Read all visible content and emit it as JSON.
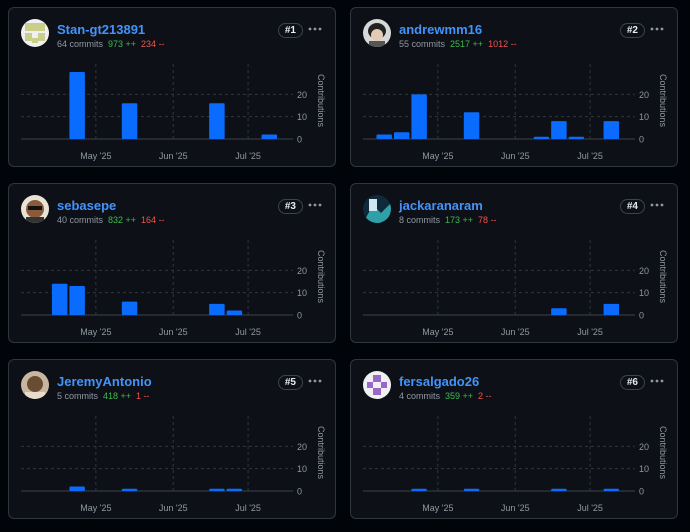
{
  "common": {
    "axis_label": "Contributions",
    "month_labels": [
      "May '25",
      "Jun '25",
      "Jul '25"
    ],
    "y_ticks": [
      "20",
      "10",
      "0"
    ],
    "plus_suffix": "++",
    "minus_suffix": "--"
  },
  "colors": {
    "bar": "#0a6cff",
    "link": "#4493f8",
    "additions": "#3fb950",
    "deletions": "#f85149"
  },
  "contributors": [
    {
      "username": "Stan-gt213891",
      "commits": "64 commits",
      "additions": "973",
      "deletions": "234",
      "rank": "#1",
      "avatar_icon": "identicon-yellow-green",
      "chart_data": {
        "type": "bar",
        "ylim": [
          0,
          30
        ],
        "ylabel": "Contributions",
        "x": [
          "2025-04-20",
          "2025-05-11",
          "2025-06-15",
          "2025-07-06"
        ],
        "values": [
          30,
          16,
          16,
          2
        ]
      }
    },
    {
      "username": "andrewmm16",
      "commits": "55 commits",
      "additions": "2517",
      "deletions": "1012",
      "rank": "#2",
      "avatar_icon": "photo-avatar-dark-hair",
      "chart_data": {
        "type": "bar",
        "ylim": [
          0,
          30
        ],
        "ylabel": "Contributions",
        "x": [
          "2025-04-06",
          "2025-04-13",
          "2025-04-20",
          "2025-05-11",
          "2025-06-08",
          "2025-06-15",
          "2025-06-22",
          "2025-07-06"
        ],
        "values": [
          2,
          3,
          20,
          12,
          1,
          8,
          1,
          8
        ]
      }
    },
    {
      "username": "sebasepe",
      "commits": "40 commits",
      "additions": "832",
      "deletions": "164",
      "rank": "#3",
      "avatar_icon": "photo-avatar-sunglasses",
      "chart_data": {
        "type": "bar",
        "ylim": [
          0,
          30
        ],
        "ylabel": "Contributions",
        "x": [
          "2025-04-13",
          "2025-04-20",
          "2025-05-11",
          "2025-06-15",
          "2025-06-22"
        ],
        "values": [
          14,
          13,
          6,
          5,
          2
        ]
      }
    },
    {
      "username": "jackaranaram",
      "commits": "8 commits",
      "additions": "173",
      "deletions": "78",
      "rank": "#4",
      "avatar_icon": "photo-avatar-landscape",
      "chart_data": {
        "type": "bar",
        "ylim": [
          0,
          30
        ],
        "ylabel": "Contributions",
        "x": [
          "2025-06-15",
          "2025-07-06"
        ],
        "values": [
          3,
          5
        ]
      }
    },
    {
      "username": "JeremyAntonio",
      "commits": "5 commits",
      "additions": "418",
      "deletions": "1",
      "rank": "#5",
      "avatar_icon": "photo-avatar-light",
      "chart_data": {
        "type": "bar",
        "ylim": [
          0,
          30
        ],
        "ylabel": "Contributions",
        "x": [
          "2025-04-20",
          "2025-05-11",
          "2025-06-15",
          "2025-06-22"
        ],
        "values": [
          2,
          1,
          1,
          1
        ]
      }
    },
    {
      "username": "fersalgado26",
      "commits": "4 commits",
      "additions": "359",
      "deletions": "2",
      "rank": "#6",
      "avatar_icon": "identicon-purple",
      "chart_data": {
        "type": "bar",
        "ylim": [
          0,
          30
        ],
        "ylabel": "Contributions",
        "x": [
          "2025-04-20",
          "2025-05-11",
          "2025-06-15",
          "2025-07-06"
        ],
        "values": [
          1,
          1,
          1,
          1
        ]
      }
    }
  ]
}
